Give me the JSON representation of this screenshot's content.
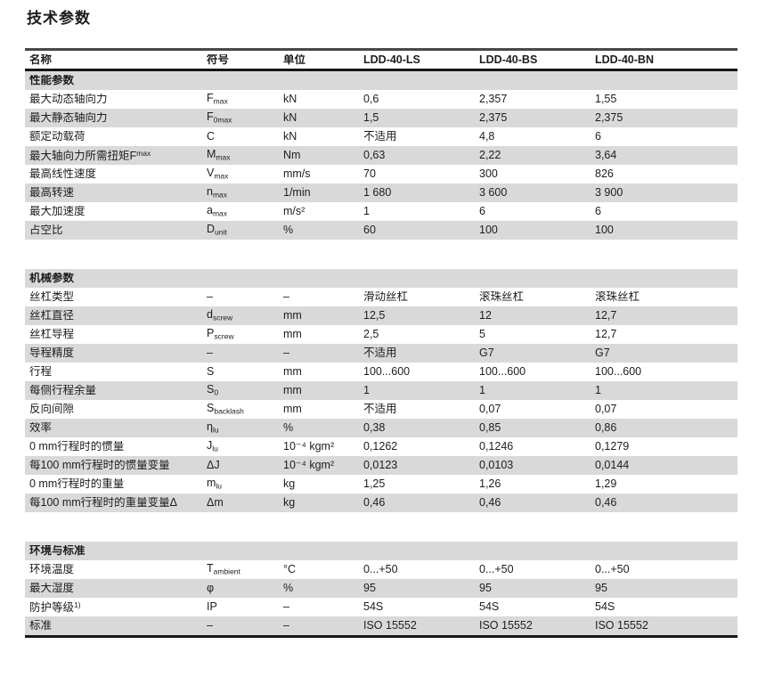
{
  "page_title": "技术参数",
  "colors": {
    "row_alt": "#d9d9d9",
    "rule_top": "#474747",
    "rule_dark": "#161615",
    "text": "#1d1d1b"
  },
  "table": {
    "headers": [
      "名称",
      "符号",
      "单位",
      "LDD-40-LS",
      "LDD-40-BS",
      "LDD-40-BN"
    ],
    "sections": [
      {
        "title": "性能参数",
        "rows": [
          {
            "name": "最大动态轴向力",
            "symbol": "F",
            "symbol_sub": "max",
            "unit": "kN",
            "values": [
              "0,6",
              "2,357",
              "1,55"
            ]
          },
          {
            "name": "最大静态轴向力",
            "symbol": "F",
            "symbol_sub": "0max",
            "unit": "kN",
            "values": [
              "1,5",
              "2,375",
              "2,375"
            ]
          },
          {
            "name": "额定动载荷",
            "symbol": "C",
            "symbol_sub": "",
            "unit": "kN",
            "values": [
              "不适用",
              "4,8",
              "6"
            ]
          },
          {
            "name": "最大轴向力所需扭矩F",
            "name_sup": "max",
            "symbol": "M",
            "symbol_sub": "max",
            "unit": "Nm",
            "values": [
              "0,63",
              "2,22",
              "3,64"
            ]
          },
          {
            "name": "最高线性速度",
            "symbol": "V",
            "symbol_sub": "max",
            "unit": "mm/s",
            "values": [
              "70",
              "300",
              "826"
            ]
          },
          {
            "name": "最高转速",
            "symbol": "n",
            "symbol_sub": "max",
            "unit": "1/min",
            "values": [
              "1 680",
              "3 600",
              "3 900"
            ]
          },
          {
            "name": "最大加速度",
            "symbol": "a",
            "symbol_sub": "max",
            "unit": "m/s²",
            "values": [
              "1",
              "6",
              "6"
            ]
          },
          {
            "name": "占空比",
            "symbol": "D",
            "symbol_sub": "unit",
            "unit": "%",
            "values": [
              "60",
              "100",
              "100"
            ]
          }
        ]
      },
      {
        "title": "机械参数",
        "rows": [
          {
            "name": "丝杠类型",
            "symbol": "–",
            "symbol_sub": "",
            "unit": "–",
            "values": [
              "滑动丝杠",
              "滚珠丝杠",
              "滚珠丝杠"
            ]
          },
          {
            "name": "丝杠直径",
            "symbol": "d",
            "symbol_sub": "screw",
            "unit": "mm",
            "values": [
              "12,5",
              "12",
              "12,7"
            ]
          },
          {
            "name": "丝杠导程",
            "symbol": "P",
            "symbol_sub": "screw",
            "unit": "mm",
            "values": [
              "2,5",
              "5",
              "12,7"
            ]
          },
          {
            "name": "导程精度",
            "symbol": "–",
            "symbol_sub": "",
            "unit": "–",
            "values": [
              "不适用",
              "G7",
              "G7"
            ]
          },
          {
            "name": "行程",
            "symbol": "S",
            "symbol_sub": "",
            "unit": "mm",
            "values": [
              "100...600",
              "100...600",
              "100...600"
            ]
          },
          {
            "name": "每侧行程余量",
            "symbol": "S",
            "symbol_sub": "0",
            "unit": "mm",
            "values": [
              "1",
              "1",
              "1"
            ]
          },
          {
            "name": "反向间隙",
            "symbol": "S",
            "symbol_sub": "backlash",
            "unit": "mm",
            "values": [
              "不适用",
              "0,07",
              "0,07"
            ]
          },
          {
            "name": "效率",
            "symbol": "η",
            "symbol_sub": "lu",
            "unit": "%",
            "values": [
              "0,38",
              "0,85",
              "0,86"
            ]
          },
          {
            "name": "0 mm行程时的惯量",
            "symbol": "J",
            "symbol_sub": "lu",
            "unit": "10⁻⁴ kgm²",
            "values": [
              "0,1262",
              "0,1246",
              "0,1279"
            ]
          },
          {
            "name": "每100 mm行程时的惯量变量",
            "symbol": "ΔJ",
            "symbol_sub": "",
            "unit": "10⁻⁴ kgm²",
            "values": [
              "0,0123",
              "0,0103",
              "0,0144"
            ]
          },
          {
            "name": "0 mm行程时的重量",
            "symbol": "m",
            "symbol_sub": "lu",
            "unit": "kg",
            "values": [
              "1,25",
              "1,26",
              "1,29"
            ]
          },
          {
            "name": "每100 mm行程时的重量变量Δ",
            "symbol": "Δm",
            "symbol_sub": "",
            "unit": "kg",
            "values": [
              "0,46",
              "0,46",
              "0,46"
            ]
          }
        ]
      },
      {
        "title": "环境与标准",
        "rows": [
          {
            "name": "环境温度",
            "symbol": "T",
            "symbol_sub": "ambient",
            "unit": "°C",
            "values": [
              "0...+50",
              "0...+50",
              "0...+50"
            ]
          },
          {
            "name": "最大湿度",
            "symbol": "φ",
            "symbol_sub": "",
            "unit": "%",
            "values": [
              "95",
              "95",
              "95"
            ]
          },
          {
            "name": "防护等级",
            "name_sup": "1)",
            "symbol": "IP",
            "symbol_sub": "",
            "unit": "–",
            "values": [
              "54S",
              "54S",
              "54S"
            ]
          },
          {
            "name": "标准",
            "symbol": "–",
            "symbol_sub": "",
            "unit": "–",
            "values": [
              "ISO 15552",
              "ISO 15552",
              "ISO 15552"
            ]
          }
        ]
      }
    ]
  }
}
